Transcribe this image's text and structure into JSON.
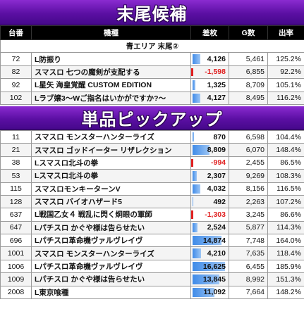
{
  "banner_top": "末尾候補",
  "banner_single": "単品ピックアップ",
  "headers": [
    "台番",
    "機種",
    "差枚",
    "G数",
    "出率"
  ],
  "area_label": "青エリア 末尾②",
  "group1": [
    {
      "no": "72",
      "name": "L防振り",
      "diff": "4,126",
      "diff_value": 4126,
      "games": "5,461",
      "rate": "125.2%"
    },
    {
      "no": "82",
      "name": "スマスロ 七つの魔剣が支配する",
      "diff": "-1,598",
      "diff_value": -1598,
      "games": "6,855",
      "rate": "92.2%"
    },
    {
      "no": "92",
      "name": "L星矢 海皇覚醒 CUSTOM EDITION",
      "diff": "1,325",
      "diff_value": 1325,
      "games": "8,709",
      "rate": "105.1%"
    },
    {
      "no": "102",
      "name": "Lラブ嬢3～Wご指名はいかがですか?～",
      "diff": "4,127",
      "diff_value": 4127,
      "games": "8,495",
      "rate": "116.2%"
    }
  ],
  "group2": [
    {
      "no": "11",
      "name": "スマスロ モンスターハンターライズ",
      "diff": "870",
      "diff_value": 870,
      "games": "6,598",
      "rate": "104.4%"
    },
    {
      "no": "21",
      "name": "スマスロ ゴッドイーター リザレクション",
      "diff": "8,809",
      "diff_value": 8809,
      "games": "6,070",
      "rate": "148.4%"
    },
    {
      "no": "38",
      "name": "Lスマスロ北斗の拳",
      "diff": "-994",
      "diff_value": -994,
      "games": "2,455",
      "rate": "86.5%"
    },
    {
      "no": "53",
      "name": "Lスマスロ北斗の拳",
      "diff": "2,307",
      "diff_value": 2307,
      "games": "9,269",
      "rate": "108.3%"
    },
    {
      "no": "115",
      "name": "スマスロモンキーターンV",
      "diff": "4,032",
      "diff_value": 4032,
      "games": "8,156",
      "rate": "116.5%"
    },
    {
      "no": "128",
      "name": "スマスロ バイオハザード5",
      "diff": "492",
      "diff_value": 492,
      "games": "2,263",
      "rate": "107.2%"
    },
    {
      "no": "637",
      "name": "L戦国乙女４ 戦乱に閃く炯眼の軍師",
      "diff": "-1,303",
      "diff_value": -1303,
      "games": "3,245",
      "rate": "86.6%"
    },
    {
      "no": "647",
      "name": "Lパチスロ かぐや様は告らせたい",
      "diff": "2,524",
      "diff_value": 2524,
      "games": "5,877",
      "rate": "114.3%"
    },
    {
      "no": "696",
      "name": "Lパチスロ革命機ヴァルヴレイヴ",
      "diff": "14,874",
      "diff_value": 14874,
      "games": "7,748",
      "rate": "164.0%"
    },
    {
      "no": "1001",
      "name": "スマスロ モンスターハンターライズ",
      "diff": "4,210",
      "diff_value": 4210,
      "games": "7,635",
      "rate": "118.4%"
    },
    {
      "no": "1006",
      "name": "Lパチスロ革命機ヴァルヴレイヴ",
      "diff": "16,625",
      "diff_value": 16625,
      "games": "6,455",
      "rate": "185.9%"
    },
    {
      "no": "1009",
      "name": "Lパチスロ かぐや様は告らせたい",
      "diff": "13,845",
      "diff_value": 13845,
      "games": "8,992",
      "rate": "151.3%"
    },
    {
      "no": "2008",
      "name": "L東京喰種",
      "diff": "11,092",
      "diff_value": 11092,
      "games": "7,664",
      "rate": "148.2%"
    }
  ]
}
